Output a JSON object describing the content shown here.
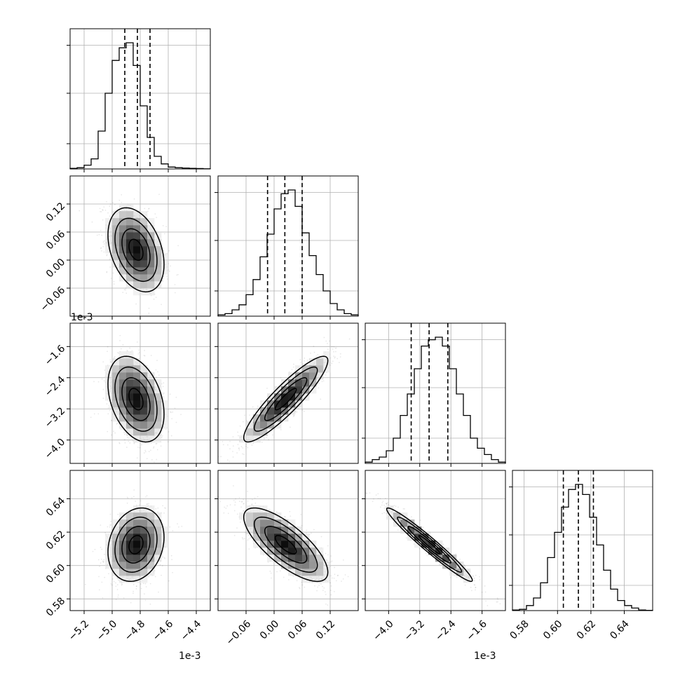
{
  "chart_data": {
    "type": "corner",
    "grid": true,
    "quantile_lines": "dashed",
    "parameters": [
      {
        "range": [
          -5.3,
          -4.3
        ],
        "quantiles": [
          -4.91,
          -4.82,
          -4.73
        ],
        "scale": 0.001,
        "offset_label": "1e-3",
        "ticks": [
          -5.2,
          -5.0,
          -4.8,
          -4.6,
          -4.4
        ],
        "tick_labels": [
          "−5.2",
          "−5.0",
          "−4.8",
          "−4.6",
          "−4.4"
        ]
      },
      {
        "range": [
          -0.12,
          0.18
        ],
        "quantiles": [
          -0.014,
          0.023,
          0.06
        ],
        "scale": 1,
        "offset_label": "",
        "ticks": [
          -0.06,
          0.0,
          0.06,
          0.12
        ],
        "tick_labels": [
          "−0.06",
          "0.00",
          "0.06",
          "0.12"
        ]
      },
      {
        "range": [
          -4.6,
          -1.0
        ],
        "quantiles": [
          -3.42,
          -2.96,
          -2.48
        ],
        "scale": 0.001,
        "offset_label": "1e-3",
        "ticks": [
          -4.0,
          -3.2,
          -2.4,
          -1.6
        ],
        "tick_labels": [
          "−4.0",
          "−3.2",
          "−2.4",
          "−1.6"
        ]
      },
      {
        "range": [
          0.573,
          0.657
        ],
        "quantiles": [
          0.6035,
          0.6125,
          0.6215
        ],
        "scale": 1,
        "offset_label": "",
        "ticks": [
          0.58,
          0.6,
          0.62,
          0.64
        ],
        "tick_labels": [
          "0.58",
          "0.60",
          "0.62",
          "0.64"
        ]
      }
    ],
    "histograms": [
      [
        0.005,
        0.01,
        0.03,
        0.08,
        0.3,
        0.6,
        0.86,
        0.96,
        1.0,
        0.82,
        0.5,
        0.25,
        0.1,
        0.04,
        0.015,
        0.01,
        0.007,
        0.005,
        0.003,
        0.001
      ],
      [
        0.01,
        0.02,
        0.05,
        0.09,
        0.17,
        0.29,
        0.47,
        0.65,
        0.85,
        0.97,
        1.0,
        0.87,
        0.66,
        0.48,
        0.33,
        0.2,
        0.1,
        0.05,
        0.02,
        0.01
      ],
      [
        0.01,
        0.03,
        0.05,
        0.1,
        0.2,
        0.38,
        0.55,
        0.75,
        0.93,
        0.98,
        1.0,
        0.93,
        0.75,
        0.55,
        0.38,
        0.2,
        0.12,
        0.07,
        0.03,
        0.01
      ],
      [
        0.005,
        0.01,
        0.04,
        0.1,
        0.22,
        0.42,
        0.62,
        0.82,
        0.96,
        1.0,
        0.92,
        0.74,
        0.52,
        0.32,
        0.17,
        0.08,
        0.04,
        0.02,
        0.005,
        0.002
      ]
    ],
    "pairs": [
      {
        "col": 0,
        "row": 1,
        "center": [
          -4.83,
          0.022
        ],
        "sd": [
          0.1,
          0.045
        ],
        "rho": -0.35
      },
      {
        "col": 0,
        "row": 2,
        "center": [
          -4.83,
          -2.95
        ],
        "sd": [
          0.1,
          0.55
        ],
        "rho": -0.35
      },
      {
        "col": 1,
        "row": 2,
        "center": [
          0.025,
          -2.95
        ],
        "sd": [
          0.045,
          0.55
        ],
        "rho": 0.9
      },
      {
        "col": 0,
        "row": 3,
        "center": [
          -4.83,
          0.6125
        ],
        "sd": [
          0.1,
          0.011
        ],
        "rho": 0.2
      },
      {
        "col": 1,
        "row": 3,
        "center": [
          0.025,
          0.6125
        ],
        "sd": [
          0.045,
          0.011
        ],
        "rho": -0.75
      },
      {
        "col": 2,
        "row": 3,
        "center": [
          -2.95,
          0.6125
        ],
        "sd": [
          0.55,
          0.011
        ],
        "rho": -0.97
      }
    ],
    "contour_levels_sigma": [
      0.5,
      1.0,
      1.5,
      2.0
    ]
  }
}
